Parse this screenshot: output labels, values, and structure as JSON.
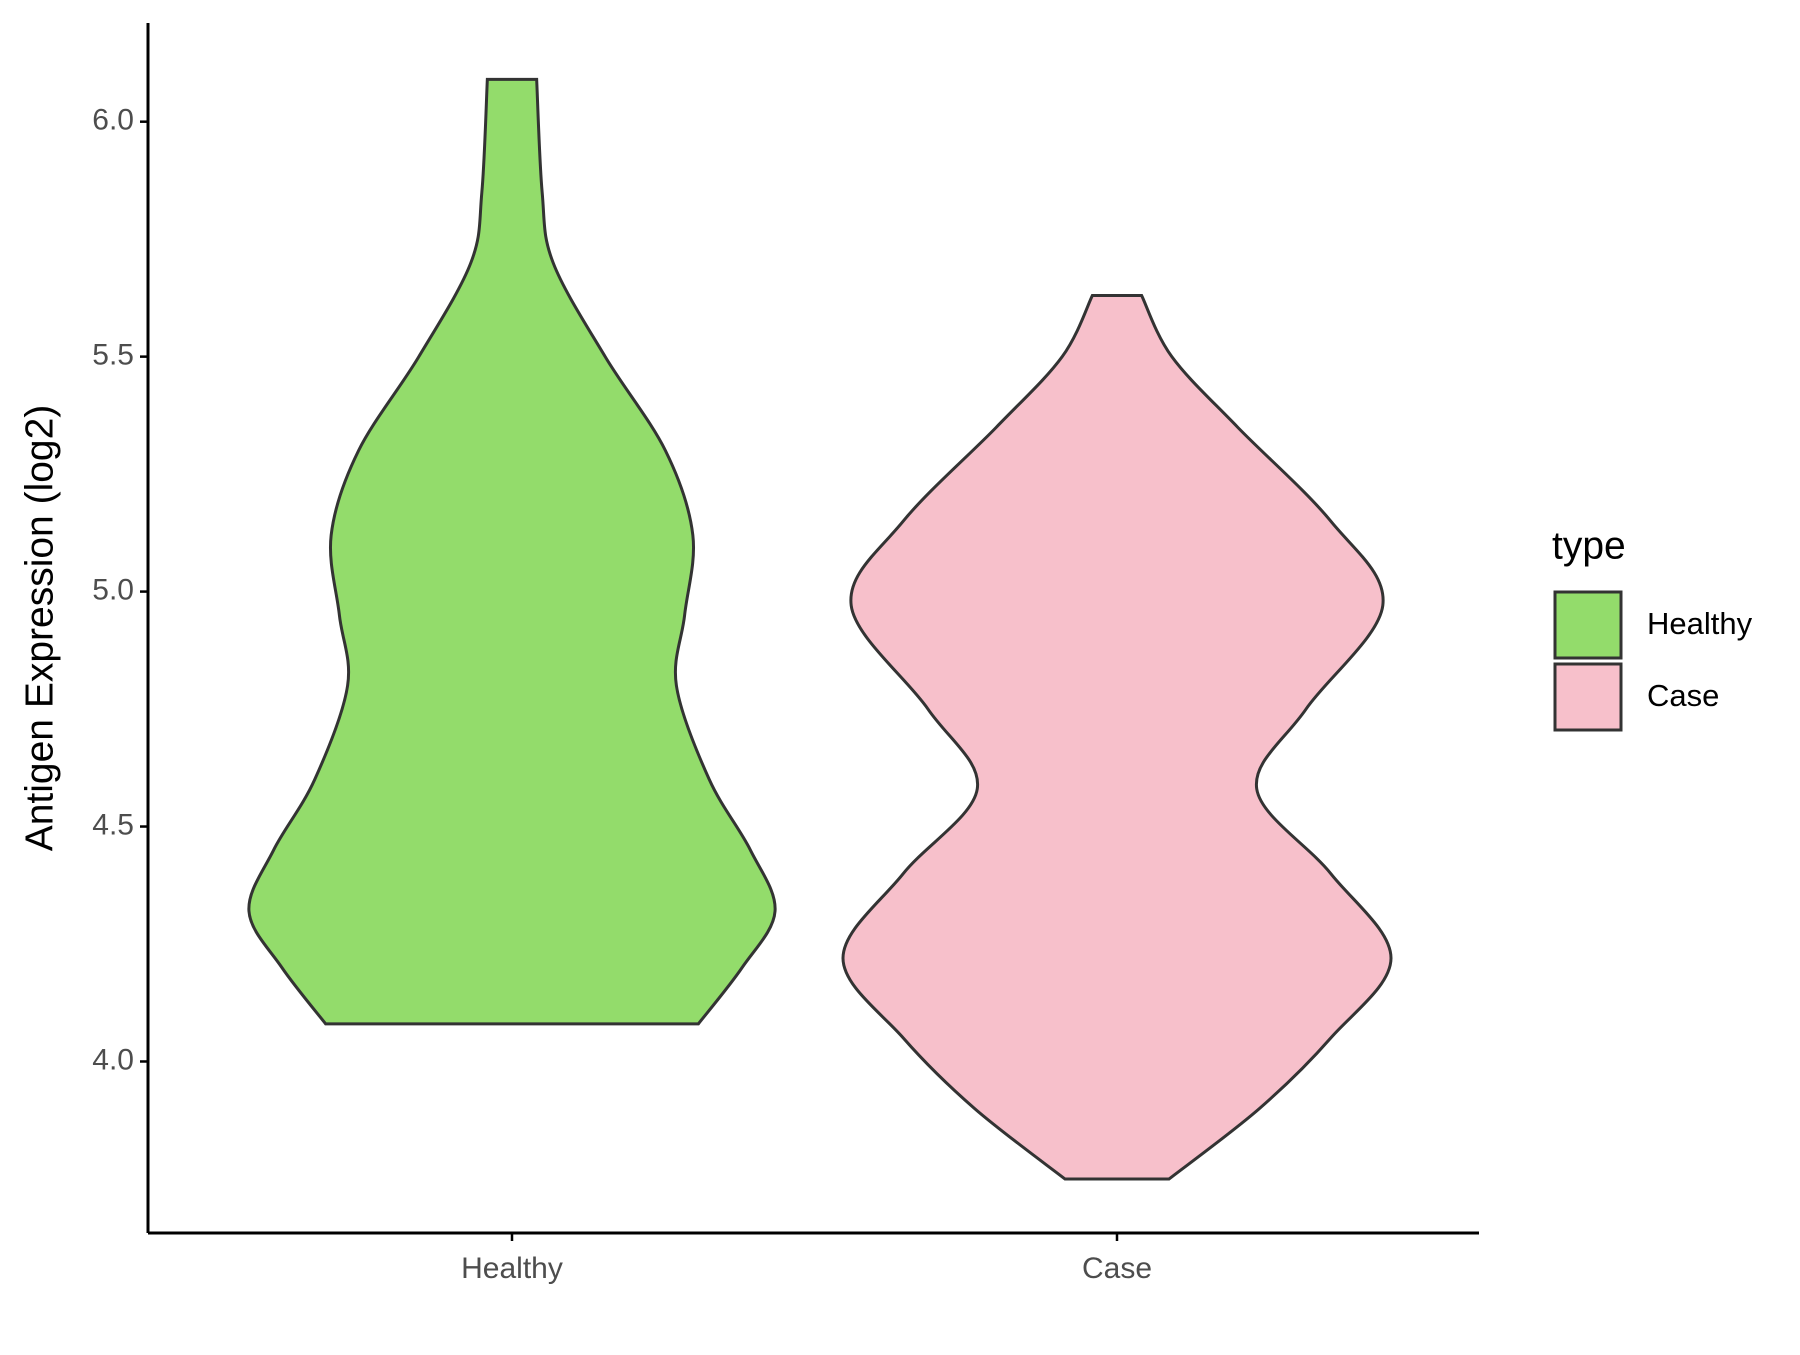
{
  "chart_data": {
    "type": "violin",
    "y_label": "Antigen Expression (log2)",
    "categories": [
      "Healthy",
      "Case"
    ],
    "legend_title": "type",
    "legend": "right",
    "ylim": [
      3.635,
      6.21
    ],
    "yticks": [
      {
        "value": 4,
        "label": "4.0"
      },
      {
        "value": 4.5,
        "label": "4.5"
      },
      {
        "value": 5,
        "label": "5.0"
      },
      {
        "value": 5.5,
        "label": "5.5"
      },
      {
        "value": 6,
        "label": "6.0"
      }
    ],
    "series": [
      {
        "name": "Healthy",
        "color": "#93dc6b",
        "y": [
          4.08,
          4.2,
          4.32,
          4.45,
          4.6,
          4.8,
          4.95,
          5.12,
          5.3,
          5.5,
          5.7,
          5.85,
          6.09
        ],
        "density": [
          0.68,
          0.84,
          0.96,
          0.87,
          0.72,
          0.6,
          0.63,
          0.66,
          0.56,
          0.34,
          0.15,
          0.11,
          0.09
        ]
      },
      {
        "name": "Case",
        "color": "#f7c0cb",
        "y": [
          3.75,
          3.9,
          4.05,
          4.22,
          4.4,
          4.58,
          4.75,
          4.97,
          5.15,
          5.35,
          5.5,
          5.63
        ],
        "density": [
          0.19,
          0.52,
          0.78,
          1.0,
          0.78,
          0.51,
          0.69,
          0.97,
          0.78,
          0.44,
          0.2,
          0.09
        ]
      }
    ]
  }
}
